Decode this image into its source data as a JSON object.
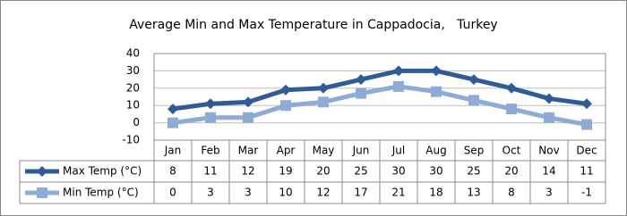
{
  "chart_data": {
    "type": "line",
    "title": "Average Min and Max Temperature in Cappadocia,   Turkey",
    "categories": [
      "Jan",
      "Feb",
      "Mar",
      "Apr",
      "May",
      "Jun",
      "Jul",
      "Aug",
      "Sep",
      "Oct",
      "Nov",
      "Dec"
    ],
    "series": [
      {
        "name": "Max Temp (°C)",
        "color": "#2f5c94",
        "values": [
          8,
          11,
          12,
          19,
          20,
          25,
          30,
          30,
          25,
          20,
          14,
          11
        ]
      },
      {
        "name": "Min Temp (°C)",
        "color": "#8eabd6",
        "values": [
          0,
          3,
          3,
          10,
          12,
          17,
          21,
          18,
          13,
          8,
          3,
          -1
        ]
      }
    ],
    "ylim": [
      -10,
      40
    ],
    "yticks": [
      -10,
      0,
      10,
      20,
      30,
      40
    ],
    "grid": true
  }
}
